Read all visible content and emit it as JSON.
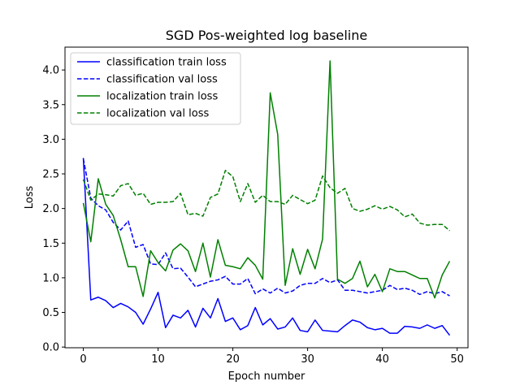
{
  "chart_data": {
    "type": "line",
    "title": "SGD Pos-weighted log baseline",
    "xlabel": "Epoch number",
    "ylabel": "Loss",
    "xlim": [
      -2.45,
      51.45
    ],
    "ylim": [
      -0.01,
      4.33
    ],
    "xticks": [
      0,
      10,
      20,
      30,
      40,
      50
    ],
    "yticks": [
      0.0,
      0.5,
      1.0,
      1.5,
      2.0,
      2.5,
      3.0,
      3.5,
      4.0
    ],
    "ytick_labels": [
      "0.0",
      "0.5",
      "1.0",
      "1.5",
      "2.0",
      "2.5",
      "3.0",
      "3.5",
      "4.0"
    ],
    "grid": false,
    "legend_position": "top-left",
    "x": [
      0,
      1,
      2,
      3,
      4,
      5,
      6,
      7,
      8,
      9,
      10,
      11,
      12,
      13,
      14,
      15,
      16,
      17,
      18,
      19,
      20,
      21,
      22,
      23,
      24,
      25,
      26,
      27,
      28,
      29,
      30,
      31,
      32,
      33,
      34,
      35,
      36,
      37,
      38,
      39,
      40,
      41,
      42,
      43,
      44,
      45,
      46,
      47,
      48,
      49
    ],
    "series": [
      {
        "name": "classification train loss",
        "color": "#0000ff",
        "style": "solid",
        "values": [
          2.73,
          0.68,
          0.72,
          0.67,
          0.57,
          0.63,
          0.58,
          0.5,
          0.33,
          0.55,
          0.79,
          0.28,
          0.46,
          0.42,
          0.53,
          0.29,
          0.56,
          0.42,
          0.7,
          0.37,
          0.42,
          0.25,
          0.31,
          0.57,
          0.32,
          0.41,
          0.26,
          0.29,
          0.42,
          0.24,
          0.22,
          0.39,
          0.24,
          0.23,
          0.22,
          0.31,
          0.39,
          0.36,
          0.28,
          0.25,
          0.27,
          0.2,
          0.2,
          0.3,
          0.29,
          0.27,
          0.32,
          0.27,
          0.31,
          0.17
        ]
      },
      {
        "name": "classification val loss",
        "color": "#0000ff",
        "style": "dashed",
        "values": [
          2.72,
          2.15,
          2.04,
          1.98,
          1.8,
          1.69,
          1.82,
          1.44,
          1.48,
          1.2,
          1.19,
          1.36,
          1.13,
          1.14,
          1.01,
          0.87,
          0.91,
          0.95,
          0.97,
          1.02,
          0.91,
          0.91,
          0.99,
          0.77,
          0.84,
          0.78,
          0.85,
          0.78,
          0.81,
          0.89,
          0.92,
          0.92,
          0.99,
          0.93,
          0.97,
          0.82,
          0.82,
          0.8,
          0.78,
          0.8,
          0.82,
          0.89,
          0.83,
          0.85,
          0.82,
          0.76,
          0.8,
          0.77,
          0.8,
          0.74
        ]
      },
      {
        "name": "localization train loss",
        "color": "#008000",
        "style": "solid",
        "values": [
          2.08,
          1.52,
          2.43,
          2.06,
          1.9,
          1.55,
          1.16,
          1.16,
          0.73,
          1.39,
          1.22,
          1.1,
          1.4,
          1.49,
          1.39,
          1.09,
          1.5,
          1.01,
          1.55,
          1.18,
          1.16,
          1.13,
          1.29,
          1.18,
          0.98,
          3.67,
          3.07,
          0.89,
          1.42,
          1.05,
          1.41,
          1.13,
          1.56,
          4.13,
          0.98,
          0.92,
          0.99,
          1.24,
          0.87,
          1.05,
          0.8,
          1.13,
          1.09,
          1.09,
          1.04,
          0.99,
          0.99,
          0.71,
          1.04,
          1.24
        ]
      },
      {
        "name": "localization val loss",
        "color": "#008000",
        "style": "dashed",
        "values": [
          2.42,
          2.12,
          2.21,
          2.2,
          2.18,
          2.33,
          2.36,
          2.19,
          2.22,
          2.06,
          2.09,
          2.09,
          2.1,
          2.22,
          1.91,
          1.93,
          1.89,
          2.16,
          2.21,
          2.55,
          2.46,
          2.1,
          2.36,
          2.09,
          2.19,
          2.1,
          2.1,
          2.06,
          2.19,
          2.13,
          2.07,
          2.12,
          2.47,
          2.3,
          2.22,
          2.29,
          2.0,
          1.96,
          1.99,
          2.04,
          1.99,
          2.03,
          1.98,
          1.88,
          1.92,
          1.79,
          1.76,
          1.77,
          1.77,
          1.68
        ]
      }
    ]
  }
}
